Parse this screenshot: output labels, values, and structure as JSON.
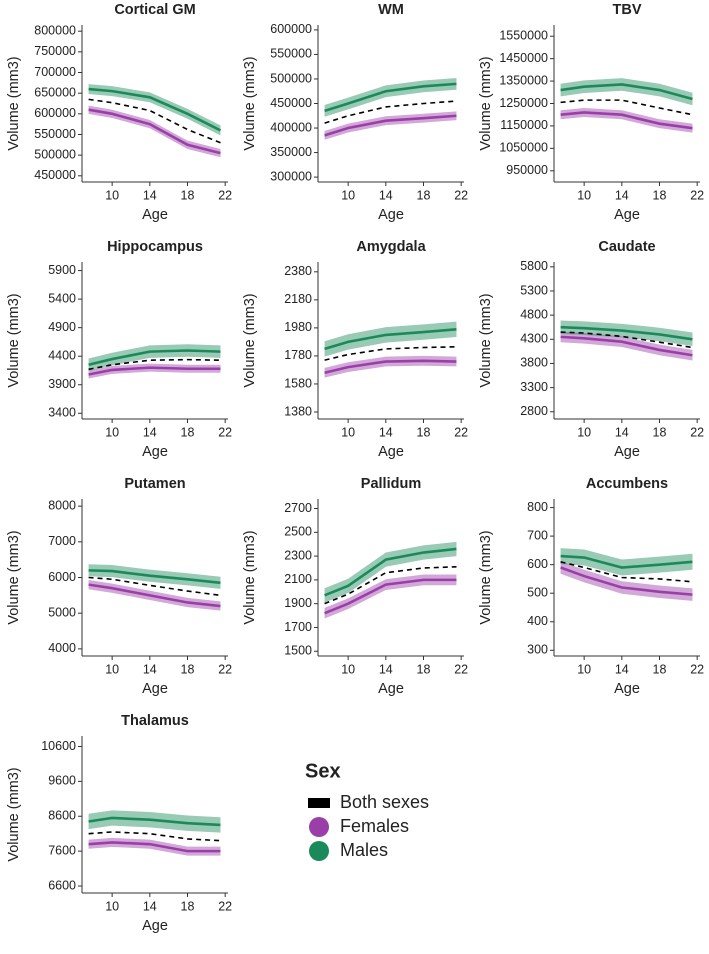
{
  "chart_data": [
    {
      "type": "line",
      "title": "Cortical GM",
      "x_label": "Age",
      "y_label": "Volume (mm3)",
      "x": [
        7.5,
        10,
        14,
        18,
        21.5
      ],
      "xlim": [
        6.8,
        22.3
      ],
      "xticks": [
        10,
        14,
        18,
        22
      ],
      "ylim": [
        435000,
        815000
      ],
      "yticks": [
        450000,
        500000,
        550000,
        600000,
        650000,
        700000,
        750000,
        800000
      ],
      "series": [
        {
          "name": "Both sexes",
          "color": "#000000",
          "style": "dashed",
          "values": [
            635000,
            627000,
            608000,
            562000,
            530000
          ]
        },
        {
          "name": "Females",
          "color": "#9b3fa8",
          "ci": 10000,
          "values": [
            610000,
            600000,
            575000,
            525000,
            505000
          ]
        },
        {
          "name": "Males",
          "color": "#1b8a5a",
          "ci": 12000,
          "values": [
            660000,
            655000,
            640000,
            600000,
            560000
          ]
        }
      ]
    },
    {
      "type": "line",
      "title": "WM",
      "x_label": "Age",
      "y_label": "Volume (mm3)",
      "x": [
        7.5,
        10,
        14,
        18,
        21.5
      ],
      "xlim": [
        6.8,
        22.3
      ],
      "xticks": [
        10,
        14,
        18,
        22
      ],
      "ylim": [
        290000,
        610000
      ],
      "yticks": [
        300000,
        350000,
        400000,
        450000,
        500000,
        550000,
        600000
      ],
      "series": [
        {
          "name": "Both sexes",
          "color": "#000000",
          "style": "dashed",
          "values": [
            410000,
            425000,
            443000,
            450000,
            455000
          ]
        },
        {
          "name": "Females",
          "color": "#9b3fa8",
          "ci": 9000,
          "values": [
            385000,
            400000,
            415000,
            420000,
            425000
          ]
        },
        {
          "name": "Males",
          "color": "#1b8a5a",
          "ci": 12000,
          "values": [
            435000,
            450000,
            475000,
            485000,
            490000
          ]
        }
      ]
    },
    {
      "type": "line",
      "title": "TBV",
      "x_label": "Age",
      "y_label": "Volume (mm3)",
      "x": [
        7.5,
        10,
        14,
        18,
        21.5
      ],
      "xlim": [
        6.8,
        22.3
      ],
      "xticks": [
        10,
        14,
        18,
        22
      ],
      "ylim": [
        900000,
        1600000
      ],
      "yticks": [
        950000,
        1050000,
        1150000,
        1250000,
        1350000,
        1450000,
        1550000
      ],
      "series": [
        {
          "name": "Both sexes",
          "color": "#000000",
          "style": "dashed",
          "values": [
            1255000,
            1265000,
            1265000,
            1230000,
            1200000
          ]
        },
        {
          "name": "Females",
          "color": "#9b3fa8",
          "ci": 20000,
          "values": [
            1200000,
            1210000,
            1200000,
            1160000,
            1140000
          ]
        },
        {
          "name": "Males",
          "color": "#1b8a5a",
          "ci": 28000,
          "values": [
            1310000,
            1325000,
            1335000,
            1310000,
            1270000
          ]
        }
      ]
    },
    {
      "type": "line",
      "title": "Hippocampus",
      "x_label": "Age",
      "y_label": "Volume (mm3)",
      "x": [
        7.5,
        10,
        14,
        18,
        21.5
      ],
      "xlim": [
        6.8,
        22.3
      ],
      "xticks": [
        10,
        14,
        18,
        22
      ],
      "ylim": [
        3300,
        6050
      ],
      "yticks": [
        3400,
        3900,
        4400,
        4900,
        5400,
        5900
      ],
      "series": [
        {
          "name": "Both sexes",
          "color": "#000000",
          "style": "dashed",
          "values": [
            4170,
            4250,
            4330,
            4340,
            4330
          ]
        },
        {
          "name": "Females",
          "color": "#9b3fa8",
          "ci": 70,
          "values": [
            4080,
            4160,
            4200,
            4180,
            4180
          ]
        },
        {
          "name": "Males",
          "color": "#1b8a5a",
          "ci": 110,
          "values": [
            4250,
            4350,
            4480,
            4500,
            4480
          ]
        }
      ]
    },
    {
      "type": "line",
      "title": "Amygdala",
      "x_label": "Age",
      "y_label": "Volume (mm3)",
      "x": [
        7.5,
        10,
        14,
        18,
        21.5
      ],
      "xlim": [
        6.8,
        22.3
      ],
      "xticks": [
        10,
        14,
        18,
        22
      ],
      "ylim": [
        1330,
        2450
      ],
      "yticks": [
        1380,
        1580,
        1780,
        1980,
        2180,
        2380
      ],
      "series": [
        {
          "name": "Both sexes",
          "color": "#000000",
          "style": "dashed",
          "values": [
            1750,
            1790,
            1830,
            1840,
            1845
          ]
        },
        {
          "name": "Females",
          "color": "#9b3fa8",
          "ci": 35,
          "values": [
            1660,
            1700,
            1740,
            1745,
            1740
          ]
        },
        {
          "name": "Males",
          "color": "#1b8a5a",
          "ci": 55,
          "values": [
            1830,
            1880,
            1930,
            1950,
            1970
          ]
        }
      ]
    },
    {
      "type": "line",
      "title": "Caudate",
      "x_label": "Age",
      "y_label": "Volume (mm3)",
      "x": [
        7.5,
        10,
        14,
        18,
        21.5
      ],
      "xlim": [
        6.8,
        22.3
      ],
      "xticks": [
        10,
        14,
        18,
        22
      ],
      "ylim": [
        2650,
        5900
      ],
      "yticks": [
        2800,
        3300,
        3800,
        4300,
        4800,
        5300,
        5800
      ],
      "series": [
        {
          "name": "Both sexes",
          "color": "#000000",
          "style": "dashed",
          "values": [
            4450,
            4430,
            4360,
            4240,
            4130
          ]
        },
        {
          "name": "Females",
          "color": "#9b3fa8",
          "ci": 110,
          "values": [
            4350,
            4320,
            4250,
            4080,
            3970
          ]
        },
        {
          "name": "Males",
          "color": "#1b8a5a",
          "ci": 140,
          "values": [
            4550,
            4530,
            4480,
            4400,
            4300
          ]
        }
      ]
    },
    {
      "type": "line",
      "title": "Putamen",
      "x_label": "Age",
      "y_label": "Volume (mm3)",
      "x": [
        7.5,
        10,
        14,
        18,
        21.5
      ],
      "xlim": [
        6.8,
        22.3
      ],
      "xticks": [
        10,
        14,
        18,
        22
      ],
      "ylim": [
        3800,
        8200
      ],
      "yticks": [
        4000,
        5000,
        6000,
        7000,
        8000
      ],
      "series": [
        {
          "name": "Both sexes",
          "color": "#000000",
          "style": "dashed",
          "values": [
            6000,
            5950,
            5780,
            5620,
            5500
          ]
        },
        {
          "name": "Females",
          "color": "#9b3fa8",
          "ci": 130,
          "values": [
            5800,
            5700,
            5500,
            5300,
            5200
          ]
        },
        {
          "name": "Males",
          "color": "#1b8a5a",
          "ci": 170,
          "values": [
            6200,
            6180,
            6050,
            5950,
            5850
          ]
        }
      ]
    },
    {
      "type": "line",
      "title": "Pallidum",
      "x_label": "Age",
      "y_label": "Volume (mm3)",
      "x": [
        7.5,
        10,
        14,
        18,
        21.5
      ],
      "xlim": [
        6.8,
        22.3
      ],
      "xticks": [
        10,
        14,
        18,
        22
      ],
      "ylim": [
        1460,
        2780
      ],
      "yticks": [
        1500,
        1700,
        1900,
        2100,
        2300,
        2500,
        2700
      ],
      "series": [
        {
          "name": "Both sexes",
          "color": "#000000",
          "style": "dashed",
          "values": [
            1900,
            1980,
            2160,
            2200,
            2210
          ]
        },
        {
          "name": "Females",
          "color": "#9b3fa8",
          "ci": 45,
          "values": [
            1820,
            1900,
            2060,
            2100,
            2100
          ]
        },
        {
          "name": "Males",
          "color": "#1b8a5a",
          "ci": 60,
          "values": [
            1970,
            2050,
            2270,
            2330,
            2360
          ]
        }
      ]
    },
    {
      "type": "line",
      "title": "Accumbens",
      "x_label": "Age",
      "y_label": "Volume (mm3)",
      "x": [
        7.5,
        10,
        14,
        18,
        21.5
      ],
      "xlim": [
        6.8,
        22.3
      ],
      "xticks": [
        10,
        14,
        18,
        22
      ],
      "ylim": [
        280,
        830
      ],
      "yticks": [
        300,
        400,
        500,
        600,
        700,
        800
      ],
      "series": [
        {
          "name": "Both sexes",
          "color": "#000000",
          "style": "dashed",
          "values": [
            610,
            590,
            555,
            550,
            540
          ]
        },
        {
          "name": "Females",
          "color": "#9b3fa8",
          "ci": 22,
          "values": [
            590,
            560,
            520,
            505,
            495
          ]
        },
        {
          "name": "Males",
          "color": "#1b8a5a",
          "ci": 28,
          "values": [
            630,
            625,
            590,
            600,
            610
          ]
        }
      ]
    },
    {
      "type": "line",
      "title": "Thalamus",
      "x_label": "Age",
      "y_label": "Volume (mm3)",
      "x": [
        7.5,
        10,
        14,
        18,
        21.5
      ],
      "xlim": [
        6.8,
        22.3
      ],
      "xticks": [
        10,
        14,
        18,
        22
      ],
      "ylim": [
        6400,
        10900
      ],
      "yticks": [
        6600,
        7600,
        8600,
        9600,
        10600
      ],
      "series": [
        {
          "name": "Both sexes",
          "color": "#000000",
          "style": "dashed",
          "values": [
            8100,
            8150,
            8100,
            7950,
            7900
          ]
        },
        {
          "name": "Females",
          "color": "#9b3fa8",
          "ci": 130,
          "values": [
            7800,
            7850,
            7800,
            7600,
            7600
          ]
        },
        {
          "name": "Males",
          "color": "#1b8a5a",
          "ci": 220,
          "values": [
            8450,
            8550,
            8500,
            8400,
            8350
          ]
        }
      ]
    }
  ],
  "legend": {
    "title": "Sex"
  }
}
